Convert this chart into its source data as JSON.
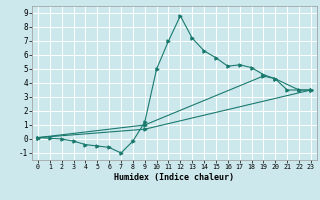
{
  "title": "",
  "xlabel": "Humidex (Indice chaleur)",
  "xlim": [
    -0.5,
    23.5
  ],
  "ylim": [
    -1.5,
    9.5
  ],
  "xticks": [
    0,
    1,
    2,
    3,
    4,
    5,
    6,
    7,
    8,
    9,
    10,
    11,
    12,
    13,
    14,
    15,
    16,
    17,
    18,
    19,
    20,
    21,
    22,
    23
  ],
  "yticks": [
    -1,
    0,
    1,
    2,
    3,
    4,
    5,
    6,
    7,
    8,
    9
  ],
  "bg_color": "#cce8ed",
  "grid_color": "#ffffff",
  "line_color": "#1a7a6e",
  "lines": [
    {
      "x": [
        0,
        1,
        2,
        3,
        4,
        5,
        6,
        7,
        8,
        9,
        10,
        11,
        12,
        13,
        14,
        15,
        16,
        17,
        18,
        19,
        20,
        21,
        22,
        23
      ],
      "y": [
        0.1,
        0.05,
        0.0,
        -0.15,
        -0.4,
        -0.5,
        -0.6,
        -1.0,
        -0.15,
        1.2,
        5.0,
        7.0,
        8.8,
        7.2,
        6.3,
        5.8,
        5.2,
        5.3,
        5.1,
        4.6,
        4.3,
        3.5,
        3.5,
        3.5
      ]
    },
    {
      "x": [
        0,
        9,
        19,
        20,
        22,
        23
      ],
      "y": [
        0.1,
        1.0,
        4.5,
        4.3,
        3.5,
        3.5
      ]
    },
    {
      "x": [
        0,
        9,
        23
      ],
      "y": [
        0.1,
        0.7,
        3.5
      ]
    }
  ]
}
